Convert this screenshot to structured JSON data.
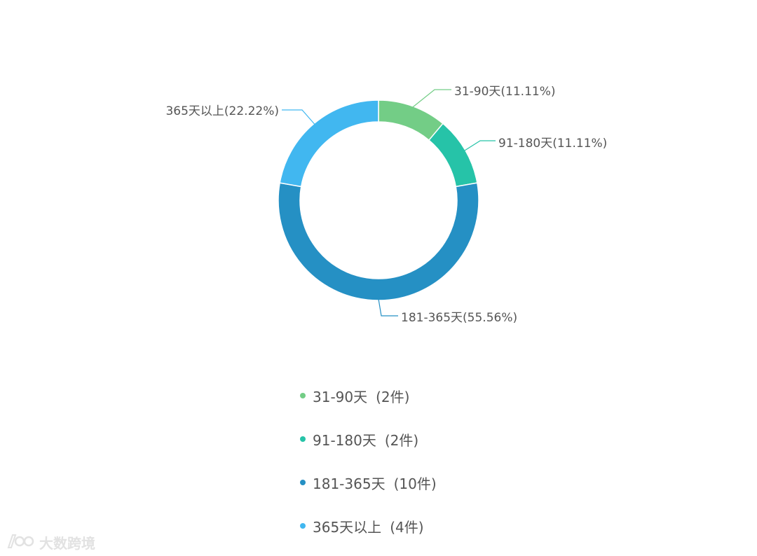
{
  "chart_data": {
    "type": "pie",
    "style": "donut",
    "slices": [
      {
        "label": "31-90天",
        "percent_label": "(11.11%)",
        "percent": 11.11,
        "count": 2,
        "count_label": "(2件)",
        "color": "#73cd86"
      },
      {
        "label": "91-180天",
        "percent_label": "(11.11%)",
        "percent": 11.11,
        "count": 2,
        "count_label": "(2件)",
        "color": "#26c3a8"
      },
      {
        "label": "181-365天",
        "percent_label": "(55.56%)",
        "percent": 55.56,
        "count": 10,
        "count_label": "(10件)",
        "color": "#2590c4"
      },
      {
        "label": "365天以上",
        "percent_label": "(22.22%)",
        "percent": 22.22,
        "count": 4,
        "count_label": "(4件)",
        "color": "#41b7f0"
      }
    ],
    "legend_placement": "bottom"
  },
  "watermark": {
    "text": "大数跨境"
  }
}
